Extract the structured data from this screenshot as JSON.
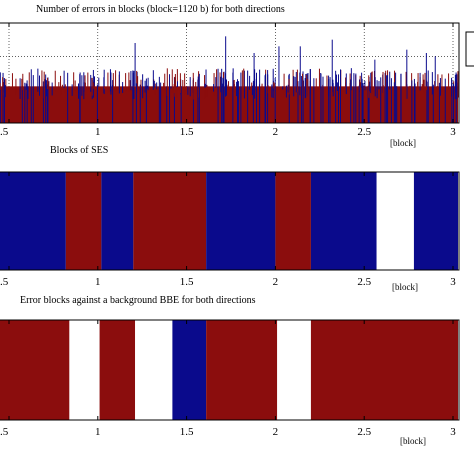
{
  "colors": {
    "red": "#8b0d0d",
    "blue": "#0a0a8c",
    "white": "#ffffff",
    "frame": "#000000"
  },
  "chart_data": [
    {
      "type": "bar",
      "title": "Number of errors in blocks (block=1120 b) for both directions",
      "xlabel": "[block]",
      "xlim": [
        0.5,
        3.0
      ],
      "xticks": [
        0.5,
        1,
        1.5,
        2,
        2.5,
        3
      ],
      "xtick_labels": [
        ".5",
        "1",
        "1.5",
        "2",
        "2.5",
        "3"
      ],
      "grid": true,
      "background_fill": "red",
      "bar_color": "blue",
      "spikes": [
        {
          "x": 1.21,
          "y": 2.4
        },
        {
          "x": 1.72,
          "y": 2.6
        },
        {
          "x": 1.88,
          "y": 2.1
        },
        {
          "x": 2.02,
          "y": 2.3
        },
        {
          "x": 2.14,
          "y": 2.3
        },
        {
          "x": 2.32,
          "y": 2.5
        },
        {
          "x": 2.56,
          "y": 1.9
        },
        {
          "x": 2.74,
          "y": 2.2
        },
        {
          "x": 2.85,
          "y": 2.1
        },
        {
          "x": 2.9,
          "y": 2.0
        }
      ]
    },
    {
      "type": "bar",
      "title": "Blocks of SES",
      "xlabel": "[block]",
      "xlim": [
        0.5,
        3.0
      ],
      "xticks": [
        0.5,
        1,
        1.5,
        2,
        2.5,
        3
      ],
      "xtick_labels": [
        ".5",
        "1",
        "1.5",
        "2",
        "2.5",
        "3"
      ],
      "segments": [
        {
          "start": 0.5,
          "end": 0.82,
          "color": "blue"
        },
        {
          "start": 0.82,
          "end": 1.02,
          "color": "red"
        },
        {
          "start": 1.02,
          "end": 1.2,
          "color": "blue"
        },
        {
          "start": 1.2,
          "end": 1.61,
          "color": "red"
        },
        {
          "start": 1.61,
          "end": 2.0,
          "color": "blue"
        },
        {
          "start": 2.0,
          "end": 2.2,
          "color": "red"
        },
        {
          "start": 2.2,
          "end": 2.57,
          "color": "blue"
        },
        {
          "start": 2.57,
          "end": 2.78,
          "color": "white"
        },
        {
          "start": 2.78,
          "end": 3.0,
          "color": "blue"
        }
      ]
    },
    {
      "type": "bar",
      "title": "Error blocks against a background BBE for both directions",
      "xlabel": "[block]",
      "xlim": [
        0.5,
        3.0
      ],
      "xticks": [
        0.5,
        1,
        1.5,
        2,
        2.5,
        3
      ],
      "xtick_labels": [
        ".5",
        "1",
        "1.5",
        "2",
        "2.5",
        "3"
      ],
      "segments": [
        {
          "start": 0.5,
          "end": 0.84,
          "color": "red"
        },
        {
          "start": 0.84,
          "end": 1.01,
          "color": "white"
        },
        {
          "start": 1.01,
          "end": 1.21,
          "color": "red"
        },
        {
          "start": 1.21,
          "end": 1.42,
          "color": "white"
        },
        {
          "start": 1.42,
          "end": 1.61,
          "color": "blue"
        },
        {
          "start": 1.61,
          "end": 2.01,
          "color": "red"
        },
        {
          "start": 2.01,
          "end": 2.2,
          "color": "white"
        },
        {
          "start": 2.2,
          "end": 3.0,
          "color": "red"
        }
      ]
    }
  ]
}
